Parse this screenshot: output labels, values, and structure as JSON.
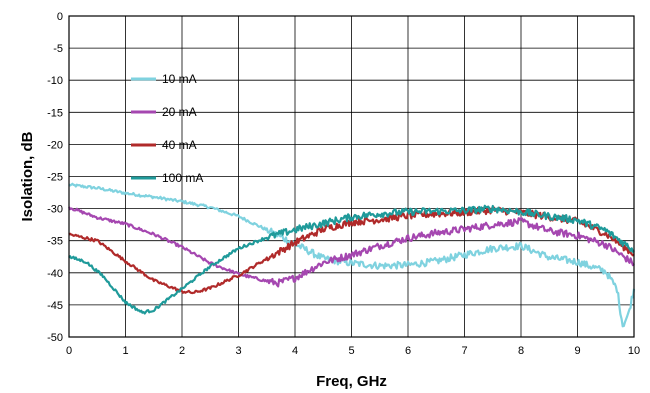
{
  "chart_data": {
    "type": "line",
    "title": "",
    "xlabel": "Freq, GHz",
    "ylabel": "Isolation, dB",
    "xlim": [
      0,
      10
    ],
    "ylim": [
      -50,
      0
    ],
    "x_ticks": [
      0,
      1,
      2,
      3,
      4,
      5,
      6,
      7,
      8,
      9,
      10
    ],
    "y_ticks": [
      0,
      -5,
      -10,
      -15,
      -20,
      -25,
      -30,
      -35,
      -40,
      -45,
      -50
    ],
    "grid": true,
    "legend_position": "upper-left",
    "series": [
      {
        "name": "10 mA",
        "color": "#7fd2df",
        "x": [
          0,
          0.5,
          1,
          1.5,
          2,
          2.5,
          3,
          3.5,
          4,
          4.5,
          5,
          5.5,
          6,
          6.5,
          7,
          7.5,
          8,
          8.5,
          9,
          9.5,
          9.7,
          9.8,
          9.9,
          10
        ],
        "y": [
          -26.3,
          -26.8,
          -27.6,
          -28.2,
          -28.9,
          -29.8,
          -31.2,
          -33.3,
          -35.5,
          -37.8,
          -38.5,
          -38.9,
          -38.8,
          -38.2,
          -37.2,
          -36.2,
          -35.8,
          -37.6,
          -38.3,
          -39.8,
          -42.5,
          -48.2,
          -46.5,
          -42.5
        ]
      },
      {
        "name": "20 mA",
        "color": "#a547b0",
        "x": [
          0,
          0.5,
          1,
          1.5,
          2,
          2.5,
          3,
          3.5,
          3.7,
          4,
          4.5,
          5,
          5.5,
          6,
          6.5,
          7,
          7.5,
          8,
          8.5,
          9,
          9.5,
          10
        ],
        "y": [
          -29.8,
          -31.4,
          -32.4,
          -34.0,
          -36.0,
          -38.5,
          -40.2,
          -41.3,
          -41.6,
          -40.8,
          -38.4,
          -37.2,
          -35.8,
          -34.6,
          -33.8,
          -33.2,
          -32.5,
          -32.0,
          -33.5,
          -34.2,
          -35.6,
          -38.6
        ]
      },
      {
        "name": "40 mA",
        "color": "#b02a2a",
        "x": [
          0,
          0.5,
          1,
          1.5,
          2,
          2.2,
          2.5,
          3,
          3.5,
          4,
          4.5,
          5,
          5.5,
          6,
          6.5,
          7,
          7.5,
          8,
          8.5,
          9,
          9.5,
          10
        ],
        "y": [
          -34.0,
          -35.0,
          -38.2,
          -41.2,
          -42.9,
          -43.1,
          -42.4,
          -40.4,
          -37.8,
          -35.3,
          -33.2,
          -32.1,
          -31.7,
          -31.1,
          -30.8,
          -30.6,
          -30.2,
          -30.6,
          -31.3,
          -32.0,
          -33.9,
          -37.1
        ]
      },
      {
        "name": "100 mA",
        "color": "#1f9a9a",
        "x": [
          0,
          0.3,
          0.6,
          1,
          1.3,
          1.5,
          2,
          2.5,
          3,
          3.5,
          4,
          4.5,
          5,
          5.5,
          6,
          6.5,
          7,
          7.5,
          8,
          8.5,
          9,
          9.5,
          10
        ],
        "y": [
          -37.5,
          -38.3,
          -40.5,
          -44.6,
          -46.2,
          -45.8,
          -42.5,
          -39.0,
          -36.2,
          -34.5,
          -33.3,
          -32.3,
          -31.3,
          -30.8,
          -30.5,
          -30.4,
          -30.3,
          -30.0,
          -30.5,
          -31.2,
          -31.8,
          -33.4,
          -36.5
        ]
      }
    ]
  }
}
